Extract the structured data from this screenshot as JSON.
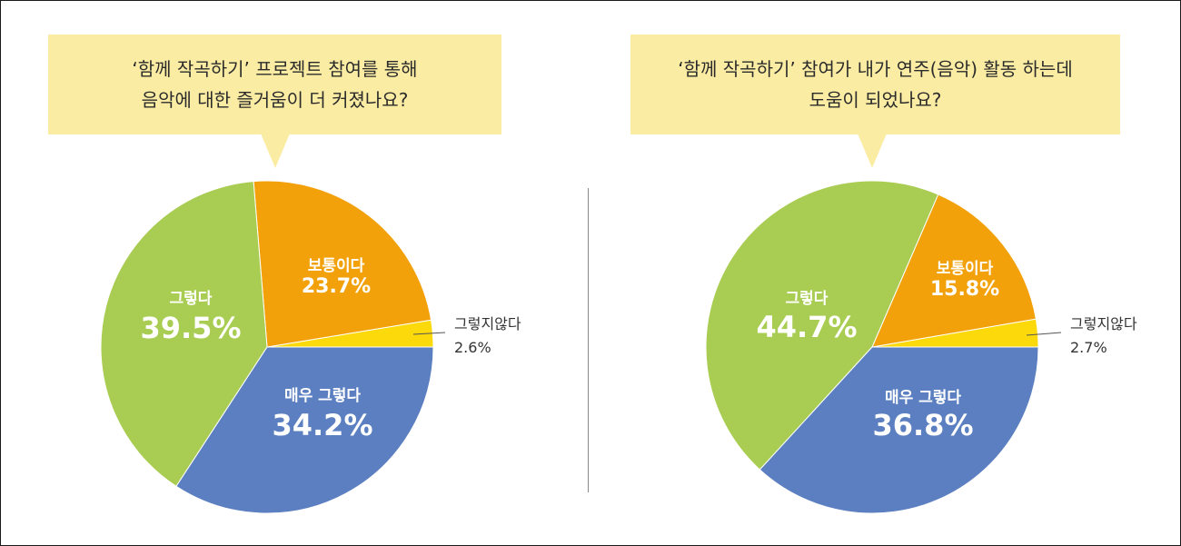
{
  "colors": {
    "very_agree": "#5b7fc0",
    "agree": "#a9cc52",
    "neutral": "#f2a10a",
    "disagree": "#fcd90a",
    "bubble": "#fbeca4"
  },
  "chart_data": [
    {
      "type": "pie",
      "title_lines": [
        "‘함께 작곡하기’ 프로젝트 참여를 통해",
        "음악에 대한 즐거움이 더 커졌나요?"
      ],
      "slices": [
        {
          "label": "그렇지않다",
          "value": 2.6,
          "display": "2.6%",
          "color": "#fcd90a"
        },
        {
          "label": "보통이다",
          "value": 23.7,
          "display": "23.7%",
          "color": "#f2a10a"
        },
        {
          "label": "그렇다",
          "value": 39.5,
          "display": "39.5%",
          "color": "#a9cc52"
        },
        {
          "label": "매우 그렇다",
          "value": 34.2,
          "display": "34.2%",
          "color": "#5b7fc0"
        }
      ]
    },
    {
      "type": "pie",
      "title_lines": [
        "‘함께 작곡하기’ 참여가 내가 연주(음악) 활동 하는데",
        "도움이 되었나요?"
      ],
      "slices": [
        {
          "label": "그렇지않다",
          "value": 2.7,
          "display": "2.7%",
          "color": "#fcd90a"
        },
        {
          "label": "보통이다",
          "value": 15.8,
          "display": "15.8%",
          "color": "#f2a10a"
        },
        {
          "label": "그렇다",
          "value": 44.7,
          "display": "44.7%",
          "color": "#a9cc52"
        },
        {
          "label": "매우 그렇다",
          "value": 36.8,
          "display": "36.8%",
          "color": "#5b7fc0"
        }
      ]
    }
  ]
}
